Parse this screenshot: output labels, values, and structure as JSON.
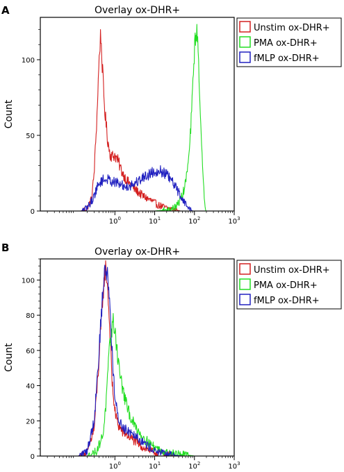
{
  "colors": {
    "red": "#d42020",
    "green": "#22dd22",
    "blue": "#2020c0"
  },
  "chart_data": [
    {
      "type": "line",
      "panel_label": "A",
      "title": "Overlay ox-DHR+",
      "ylabel": "Count",
      "xscale": "log",
      "xlim": [
        0.0133,
        1000
      ],
      "ylim": [
        0,
        128
      ],
      "xticks": [
        {
          "value": 1,
          "base": "10",
          "exp": "0"
        },
        {
          "value": 10,
          "base": "10",
          "exp": "1"
        },
        {
          "value": 100,
          "base": "10",
          "exp": "2"
        },
        {
          "value": 1000,
          "base": "10",
          "exp": "3"
        }
      ],
      "yticks": [
        0,
        50,
        100
      ],
      "legend": "top-right",
      "series": [
        {
          "name": "Unstim ox-DHR+",
          "color": "#d42020",
          "x": [
            0.14,
            0.2,
            0.26,
            0.3,
            0.35,
            0.4,
            0.44,
            0.48,
            0.55,
            0.65,
            0.75,
            0.85,
            1.0,
            1.2,
            1.5,
            2,
            3,
            5,
            8,
            12,
            20,
            30,
            45
          ],
          "y": [
            0,
            2,
            8,
            25,
            60,
            100,
            118,
            96,
            68,
            48,
            38,
            36,
            37,
            33,
            26,
            20,
            15,
            10,
            7,
            4,
            2,
            1,
            0
          ]
        },
        {
          "name": "PMA ox-DHR+",
          "color": "#22dd22",
          "x": [
            0.14,
            1,
            10,
            25,
            35,
            45,
            55,
            65,
            75,
            85,
            95,
            105,
            115,
            125,
            135,
            150,
            165,
            180,
            200
          ],
          "y": [
            0,
            0,
            0,
            1,
            3,
            8,
            14,
            25,
            40,
            65,
            95,
            115,
            118,
            105,
            80,
            45,
            20,
            6,
            0
          ]
        },
        {
          "name": "fMLP ox-DHR+",
          "color": "#2020c0",
          "x": [
            0.14,
            0.2,
            0.28,
            0.35,
            0.45,
            0.6,
            0.8,
            1.0,
            1.5,
            2,
            3,
            5,
            8,
            12,
            18,
            25,
            35,
            50,
            70,
            90
          ],
          "y": [
            0,
            2,
            8,
            15,
            20,
            21,
            20,
            19,
            17,
            16,
            18,
            22,
            25,
            27,
            25,
            21,
            15,
            8,
            2,
            0
          ]
        }
      ]
    },
    {
      "type": "line",
      "panel_label": "B",
      "title": "Overlay ox-DHR+",
      "ylabel": "Count",
      "xscale": "log",
      "xlim": [
        0.0133,
        1000
      ],
      "ylim": [
        0,
        112
      ],
      "xticks": [
        {
          "value": 1,
          "base": "10",
          "exp": "0"
        },
        {
          "value": 10,
          "base": "10",
          "exp": "1"
        },
        {
          "value": 100,
          "base": "10",
          "exp": "2"
        },
        {
          "value": 1000,
          "base": "10",
          "exp": "3"
        }
      ],
      "yticks": [
        0,
        20,
        40,
        60,
        80,
        100
      ],
      "legend": "top-right",
      "series": [
        {
          "name": "Unstim ox-DHR+",
          "color": "#d42020",
          "x": [
            0.12,
            0.2,
            0.3,
            0.4,
            0.5,
            0.58,
            0.65,
            0.75,
            0.85,
            1.0,
            1.2,
            1.5,
            2,
            3,
            5,
            10,
            20,
            50
          ],
          "y": [
            0,
            2,
            15,
            55,
            92,
            107,
            98,
            70,
            42,
            25,
            18,
            14,
            12,
            9,
            5,
            2,
            1,
            0
          ]
        },
        {
          "name": "PMA ox-DHR+",
          "color": "#22dd22",
          "x": [
            0.2,
            0.35,
            0.5,
            0.6,
            0.7,
            0.8,
            0.9,
            1.0,
            1.2,
            1.5,
            2,
            2.5,
            3,
            4,
            6,
            10,
            20,
            50,
            100
          ],
          "y": [
            0,
            3,
            12,
            30,
            55,
            70,
            76,
            72,
            55,
            40,
            28,
            22,
            18,
            14,
            9,
            5,
            2,
            1,
            0
          ]
        },
        {
          "name": "fMLP ox-DHR+",
          "color": "#2020c0",
          "x": [
            0.12,
            0.2,
            0.3,
            0.4,
            0.5,
            0.58,
            0.65,
            0.72,
            0.8,
            0.9,
            1.0,
            1.2,
            1.5,
            2,
            3,
            5,
            10,
            20,
            50,
            100
          ],
          "y": [
            0,
            3,
            20,
            60,
            95,
            107,
            103,
            92,
            72,
            50,
            32,
            22,
            17,
            15,
            13,
            8,
            3,
            1,
            0,
            0
          ]
        }
      ]
    }
  ]
}
